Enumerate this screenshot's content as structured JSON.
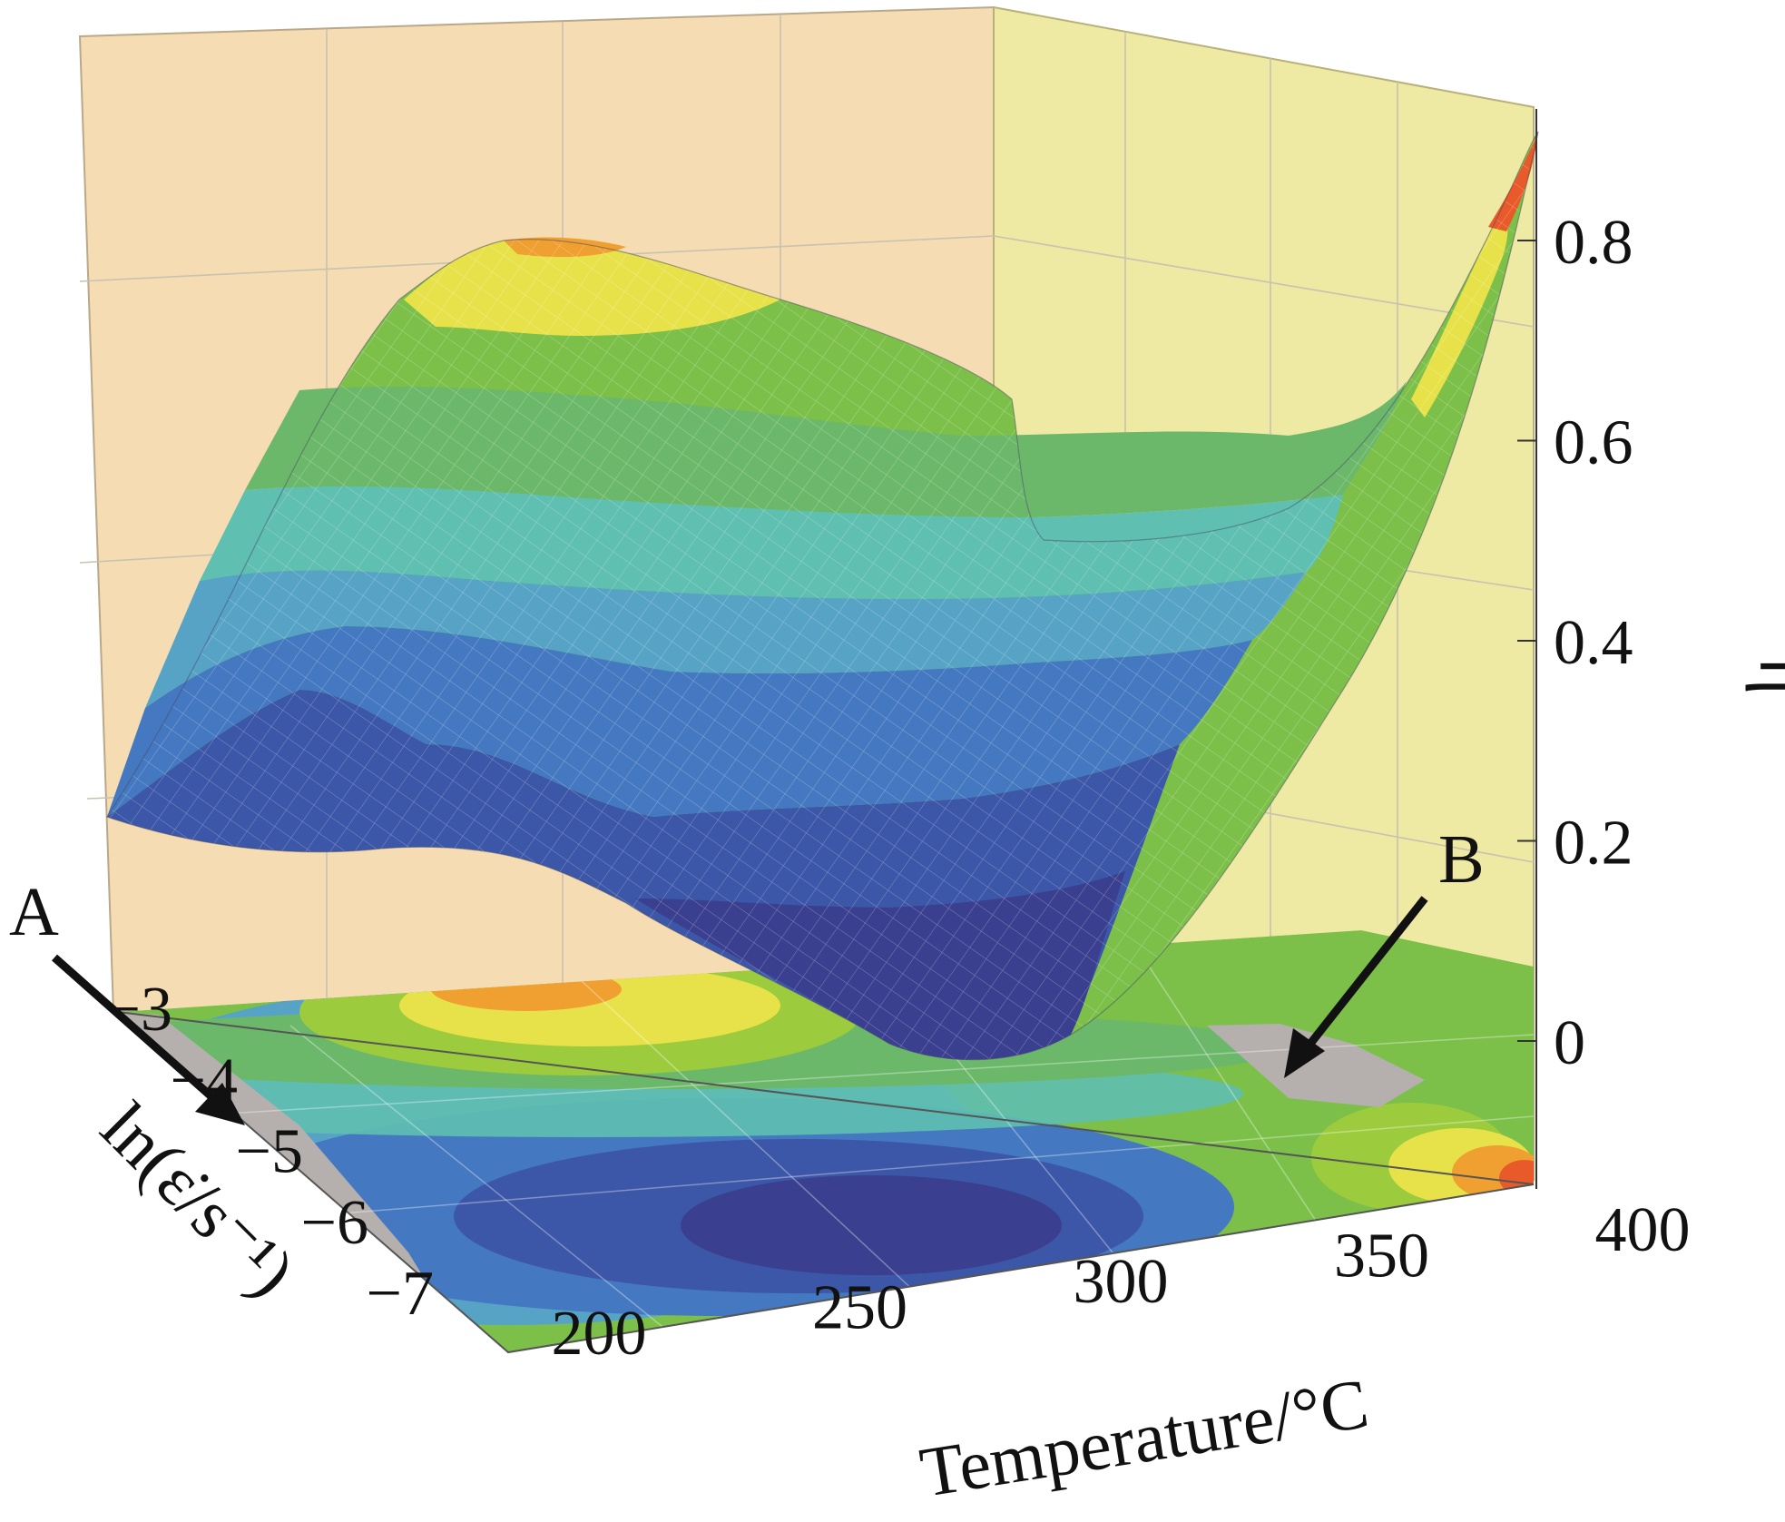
{
  "chart_data": {
    "type": "surface3d",
    "title": "",
    "x_axis": {
      "label": "Temperature/°C",
      "ticks": [
        "200",
        "250",
        "300",
        "350",
        "400"
      ],
      "range": [
        200,
        400
      ]
    },
    "y_axis": {
      "label": "ln(ε̇/s⁻¹)",
      "ticks": [
        "−7",
        "−6",
        "−5",
        "−4",
        "−3"
      ],
      "range": [
        -7,
        -3
      ]
    },
    "z_axis": {
      "label": "η",
      "ticks": [
        "0",
        "0.2",
        "0.4",
        "0.6",
        "0.8"
      ],
      "range": [
        0,
        0.8
      ]
    },
    "colormap": [
      "#3a3f8f",
      "#3c56a8",
      "#4478c0",
      "#56a3c6",
      "#5fbfb0",
      "#6cb86a",
      "#7cc04a",
      "#9ccc3e",
      "#e8e24a",
      "#f0a030",
      "#e85a2a"
    ],
    "unstable_region_color": "#b5b0ae",
    "annotations": [
      {
        "label": "A",
        "points_to": "low-temperature edge, ln strain rate ≈ −3 to −7 (projected contour)"
      },
      {
        "label": "B",
        "points_to": "≈ 360–380 °C, ln strain rate ≈ −3 (projected contour)"
      }
    ],
    "surface_features": [
      {
        "description": "peak",
        "temperature": 270,
        "ln_strain_rate": -3,
        "eta": 0.8
      },
      {
        "description": "trough",
        "temperature": 300,
        "ln_strain_rate": -6,
        "eta": 0.0
      },
      {
        "description": "corner peak",
        "temperature": 400,
        "ln_strain_rate": -7,
        "eta": 0.85
      }
    ]
  }
}
